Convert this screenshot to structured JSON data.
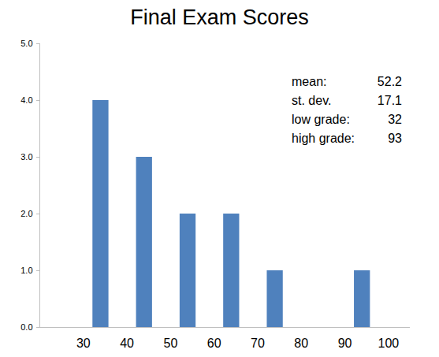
{
  "chart_data": {
    "type": "histogram",
    "title": "Final Exam Scores",
    "bins": [
      30,
      40,
      50,
      60,
      70,
      80,
      90,
      100
    ],
    "values": [
      4,
      3,
      2,
      2,
      1,
      0,
      1
    ],
    "color": "#4f81bd",
    "xlim": [
      20,
      105
    ],
    "xticks": [
      30,
      40,
      50,
      60,
      70,
      80,
      90,
      100
    ],
    "ylim": [
      0,
      5
    ],
    "yticks": [
      0,
      1,
      2,
      3,
      4,
      5
    ],
    "annotations": [
      {
        "label": "mean:",
        "value": 52.2
      },
      {
        "label": "st. dev.",
        "value": 17.1
      },
      {
        "label": "low grade:",
        "value": 32
      },
      {
        "label": "high grade:",
        "value": 93
      }
    ]
  }
}
